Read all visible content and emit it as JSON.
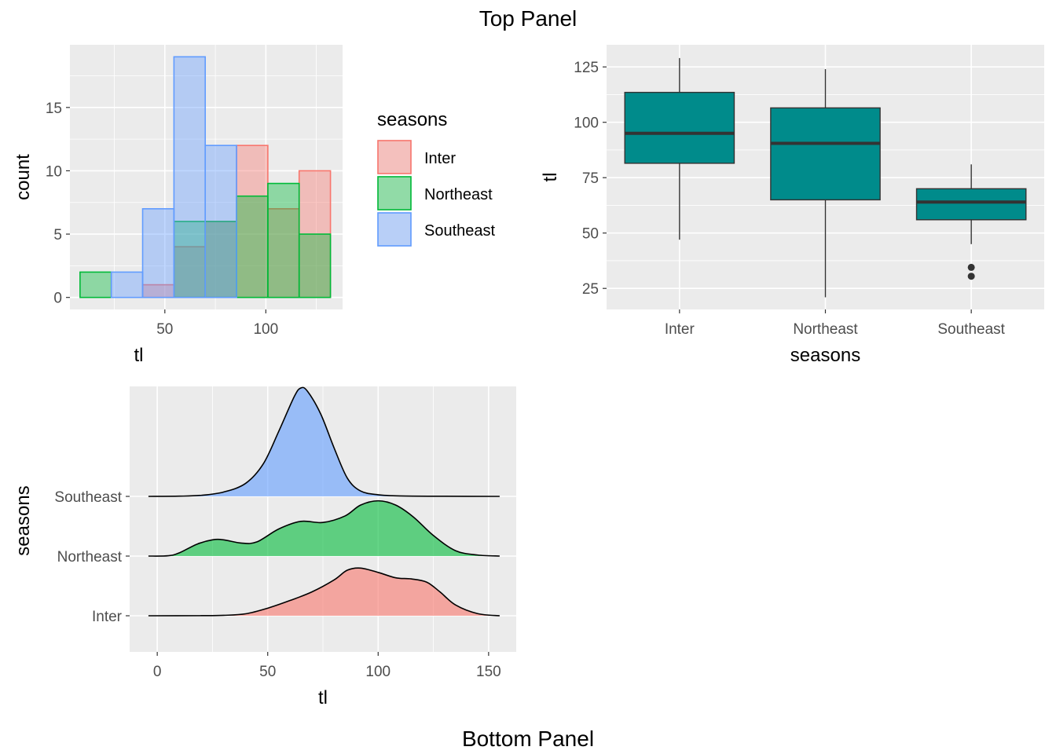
{
  "figure": {
    "top_title": "Top Panel",
    "bottom_title": "Bottom Panel"
  },
  "colors": {
    "Inter": "#F8766D",
    "Northeast": "#00BA38",
    "Southeast": "#619CFF",
    "box_fill": "#008B8B",
    "panel_bg": "#EBEBEB",
    "grid": "#FFFFFF"
  },
  "chart_data": [
    {
      "id": "histogram",
      "type": "bar",
      "subtype": "histogram-overlay",
      "title": "",
      "xlabel": "tl",
      "ylabel": "count",
      "xlim": [
        3,
        138
      ],
      "ylim": [
        -0.95,
        19.95
      ],
      "x_ticks": [
        50,
        100
      ],
      "y_ticks": [
        0,
        5,
        10,
        15
      ],
      "bin_edges": [
        8,
        23.5,
        39,
        54.5,
        70,
        85.5,
        101,
        116.5,
        132
      ],
      "series": [
        {
          "name": "Inter",
          "values": [
            0,
            0,
            1,
            4,
            6,
            12,
            7,
            10
          ]
        },
        {
          "name": "Northeast",
          "values": [
            2,
            0,
            0,
            6,
            6,
            8,
            9,
            5
          ]
        },
        {
          "name": "Southeast",
          "values": [
            0,
            2,
            7,
            19,
            12,
            0,
            0,
            0
          ]
        }
      ],
      "legend": {
        "title": "seasons",
        "entries": [
          "Inter",
          "Northeast",
          "Southeast"
        ],
        "position": "right"
      },
      "grid": true
    },
    {
      "id": "boxplot",
      "type": "box",
      "title": "",
      "xlabel": "seasons",
      "ylabel": "tl",
      "ylim": [
        15.5,
        135
      ],
      "y_ticks": [
        25,
        50,
        75,
        100,
        125
      ],
      "categories": [
        "Inter",
        "Northeast",
        "Southeast"
      ],
      "boxes": [
        {
          "name": "Inter",
          "min": 47,
          "q1": 81.5,
          "median": 95,
          "q3": 113.5,
          "max": 129,
          "outliers": []
        },
        {
          "name": "Northeast",
          "min": 21,
          "q1": 65,
          "median": 90.5,
          "q3": 106.5,
          "max": 124,
          "outliers": []
        },
        {
          "name": "Southeast",
          "min": 45,
          "q1": 56,
          "median": 64,
          "q3": 70,
          "max": 81,
          "outliers": [
            34.5,
            30.5
          ]
        }
      ],
      "grid": true
    },
    {
      "id": "ridgeline",
      "type": "area",
      "subtype": "ridgeline-density",
      "title": "",
      "xlabel": "tl",
      "ylabel": "seasons",
      "xlim": [
        -12.5,
        162.5
      ],
      "x_ticks": [
        0,
        50,
        100,
        150
      ],
      "categories": [
        "Inter",
        "Northeast",
        "Southeast"
      ],
      "series": [
        {
          "name": "Inter",
          "x": [
            -4,
            20,
            30,
            40,
            50,
            60,
            70,
            80,
            86,
            92,
            100,
            108,
            115,
            122,
            128,
            135,
            145,
            155
          ],
          "density": [
            0,
            0.001,
            0.004,
            0.018,
            0.07,
            0.14,
            0.22,
            0.33,
            0.42,
            0.44,
            0.4,
            0.35,
            0.34,
            0.31,
            0.22,
            0.1,
            0.02,
            0
          ]
        },
        {
          "name": "Northeast",
          "x": [
            -4,
            5,
            10,
            18,
            25,
            30,
            38,
            45,
            55,
            65,
            75,
            85,
            92,
            100,
            108,
            116,
            125,
            135,
            145,
            155
          ],
          "density": [
            0,
            0.003,
            0.03,
            0.11,
            0.15,
            0.15,
            0.12,
            0.13,
            0.25,
            0.32,
            0.31,
            0.37,
            0.47,
            0.51,
            0.47,
            0.36,
            0.19,
            0.05,
            0.01,
            0
          ]
        },
        {
          "name": "Southeast",
          "x": [
            -4,
            10,
            20,
            30,
            40,
            48,
            55,
            62,
            65,
            68,
            74,
            80,
            86,
            92,
            100,
            110,
            130,
            155
          ],
          "density": [
            0,
            0.002,
            0.01,
            0.04,
            0.12,
            0.3,
            0.6,
            0.92,
            1.0,
            0.97,
            0.76,
            0.45,
            0.17,
            0.05,
            0.015,
            0.004,
            0.001,
            0
          ]
        }
      ],
      "grid": true
    }
  ]
}
